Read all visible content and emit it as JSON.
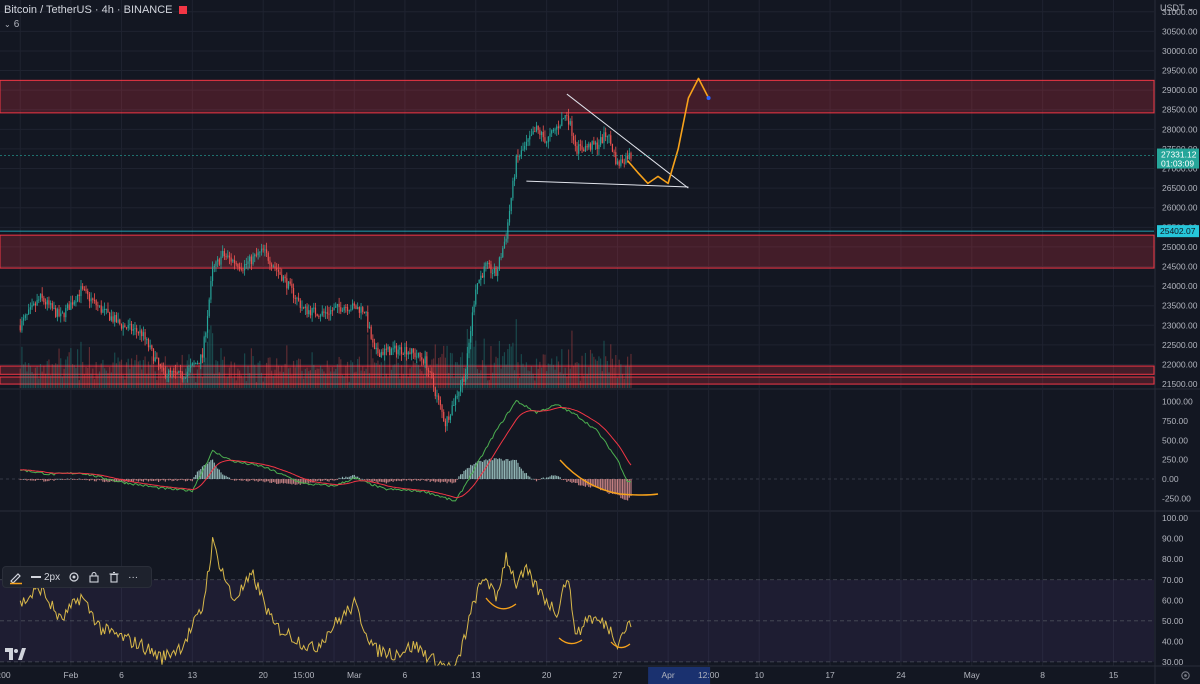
{
  "header": {
    "title": "Bitcoin / TetherUS · 4h · BINANCE",
    "indicator_count": "6"
  },
  "price_axis": {
    "currency": "USDT",
    "current_price": "27331.12",
    "countdown": "01:03:09",
    "line_price": "25402.07"
  },
  "toolbar": {
    "stroke_label": "2px",
    "more": "···"
  },
  "colors": {
    "background": "#131722",
    "up": "#26a69a",
    "down": "#ef5350",
    "zone": "#f23645",
    "annotation": "#f7a21b",
    "macd": "#4caf50",
    "signal": "#f23645",
    "rsi": "#d8b84a",
    "rsi_band": "#7e57c2"
  },
  "chart_data": [
    {
      "type": "candlestick",
      "symbol": "BTCUSDT",
      "timeframe": "4h",
      "exchange": "BINANCE",
      "ylim": [
        21400,
        31300
      ],
      "y_ticks": [
        "31000.00",
        "30500.00",
        "30000.00",
        "29500.00",
        "29000.00",
        "28500.00",
        "28000.00",
        "27500.00",
        "27000.00",
        "26500.00",
        "26000.00",
        "25500.00",
        "25000.00",
        "24500.00",
        "24000.00",
        "23500.00",
        "23000.00",
        "22500.00",
        "22000.00",
        "21500.00"
      ],
      "x_ticks": [
        "15:00",
        "Feb",
        "6",
        "13",
        "20",
        "15:00",
        "Mar",
        "6",
        "13",
        "20",
        "27",
        "Apr",
        "12:00",
        "10",
        "17",
        "24",
        "May",
        "8",
        "15"
      ],
      "resistance_zones": [
        [
          28420,
          29250
        ],
        [
          24460,
          25300
        ],
        [
          21750,
          21960
        ],
        [
          21500,
          21680
        ]
      ],
      "price_anchors": [
        [
          "2023-01-27",
          23000
        ],
        [
          "2023-01-29",
          23700
        ],
        [
          "2023-01-31",
          23200
        ],
        [
          "2023-02-02",
          23900
        ],
        [
          "2023-02-04",
          23400
        ],
        [
          "2023-02-06",
          23000
        ],
        [
          "2023-02-08",
          22800
        ],
        [
          "2023-02-10",
          21800
        ],
        [
          "2023-02-12",
          21700
        ],
        [
          "2023-02-14",
          22200
        ],
        [
          "2023-02-15",
          24400
        ],
        [
          "2023-02-16",
          24800
        ],
        [
          "2023-02-18",
          24500
        ],
        [
          "2023-02-20",
          24900
        ],
        [
          "2023-02-22",
          24200
        ],
        [
          "2023-02-24",
          23400
        ],
        [
          "2023-02-26",
          23300
        ],
        [
          "2023-02-28",
          23500
        ],
        [
          "2023-03-02",
          23400
        ],
        [
          "2023-03-03",
          22300
        ],
        [
          "2023-03-06",
          22400
        ],
        [
          "2023-03-08",
          22100
        ],
        [
          "2023-03-10",
          20500
        ],
        [
          "2023-03-12",
          21800
        ],
        [
          "2023-03-13",
          24000
        ],
        [
          "2023-03-14",
          24500
        ],
        [
          "2023-03-15",
          24300
        ],
        [
          "2023-03-16",
          25300
        ],
        [
          "2023-03-17",
          27200
        ],
        [
          "2023-03-19",
          28000
        ],
        [
          "2023-03-20",
          27700
        ],
        [
          "2023-03-22",
          28400
        ],
        [
          "2023-03-23",
          27500
        ],
        [
          "2023-03-25",
          27600
        ],
        [
          "2023-03-26",
          27900
        ],
        [
          "2023-03-27",
          27100
        ],
        [
          "2023-03-28",
          27331
        ]
      ],
      "wedge_upper": [
        [
          "2023-03-22",
          28900
        ],
        [
          "2023-04-03",
          26500
        ]
      ],
      "wedge_lower": [
        [
          "2023-03-18",
          26680
        ],
        [
          "2023-04-03",
          26530
        ]
      ],
      "projection": [
        [
          "2023-03-28",
          27200
        ],
        [
          "2023-03-29",
          26900
        ],
        [
          "2023-03-30",
          26620
        ],
        [
          "2023-03-31",
          26800
        ],
        [
          "2023-04-01",
          26620
        ],
        [
          "2023-04-02",
          27500
        ],
        [
          "2023-04-03",
          28800
        ],
        [
          "2023-04-04",
          29300
        ],
        [
          "2023-04-05",
          28800
        ]
      ]
    },
    {
      "type": "histogram",
      "name": "MACD",
      "ylim": [
        -400,
        1150
      ],
      "y_ticks": [
        "1000.00",
        "750.00",
        "500.00",
        "250.00",
        "0.00",
        "-250.00"
      ],
      "macd_anchors": [
        [
          "2023-01-27",
          120
        ],
        [
          "2023-01-30",
          60
        ],
        [
          "2023-02-02",
          80
        ],
        [
          "2023-02-06",
          -40
        ],
        [
          "2023-02-10",
          -120
        ],
        [
          "2023-02-13",
          -150
        ],
        [
          "2023-02-15",
          360
        ],
        [
          "2023-02-17",
          230
        ],
        [
          "2023-02-20",
          160
        ],
        [
          "2023-02-24",
          -60
        ],
        [
          "2023-02-27",
          -90
        ],
        [
          "2023-03-01",
          10
        ],
        [
          "2023-03-04",
          -130
        ],
        [
          "2023-03-08",
          -160
        ],
        [
          "2023-03-11",
          -290
        ],
        [
          "2023-03-13",
          160
        ],
        [
          "2023-03-15",
          620
        ],
        [
          "2023-03-17",
          1010
        ],
        [
          "2023-03-19",
          860
        ],
        [
          "2023-03-21",
          960
        ],
        [
          "2023-03-23",
          820
        ],
        [
          "2023-03-25",
          620
        ],
        [
          "2023-03-27",
          250
        ],
        [
          "2023-03-28",
          -30
        ]
      ]
    },
    {
      "type": "line",
      "name": "RSI",
      "ylim": [
        28,
        103
      ],
      "y_ticks": [
        "100.00",
        "90.00",
        "80.00",
        "70.00",
        "60.00",
        "50.00",
        "40.00",
        "30.00"
      ],
      "bands": [
        30,
        50,
        70
      ],
      "rsi_anchors": [
        [
          "2023-01-27",
          58
        ],
        [
          "2023-01-29",
          66
        ],
        [
          "2023-01-31",
          50
        ],
        [
          "2023-02-02",
          62
        ],
        [
          "2023-02-04",
          46
        ],
        [
          "2023-02-06",
          42
        ],
        [
          "2023-02-08",
          38
        ],
        [
          "2023-02-10",
          32
        ],
        [
          "2023-02-12",
          38
        ],
        [
          "2023-02-14",
          56
        ],
        [
          "2023-02-15",
          88
        ],
        [
          "2023-02-17",
          60
        ],
        [
          "2023-02-19",
          72
        ],
        [
          "2023-02-21",
          48
        ],
        [
          "2023-02-23",
          42
        ],
        [
          "2023-02-25",
          36
        ],
        [
          "2023-02-27",
          48
        ],
        [
          "2023-03-01",
          58
        ],
        [
          "2023-03-03",
          36
        ],
        [
          "2023-03-05",
          34
        ],
        [
          "2023-03-07",
          38
        ],
        [
          "2023-03-09",
          30
        ],
        [
          "2023-03-11",
          26
        ],
        [
          "2023-03-13",
          62
        ],
        [
          "2023-03-14",
          72
        ],
        [
          "2023-03-15",
          60
        ],
        [
          "2023-03-16",
          82
        ],
        [
          "2023-03-17",
          68
        ],
        [
          "2023-03-18",
          74
        ],
        [
          "2023-03-19",
          66
        ],
        [
          "2023-03-21",
          54
        ],
        [
          "2023-03-22",
          72
        ],
        [
          "2023-03-23",
          42
        ],
        [
          "2023-03-24",
          52
        ],
        [
          "2023-03-26",
          48
        ],
        [
          "2023-03-27",
          40
        ],
        [
          "2023-03-28",
          48
        ]
      ]
    }
  ]
}
